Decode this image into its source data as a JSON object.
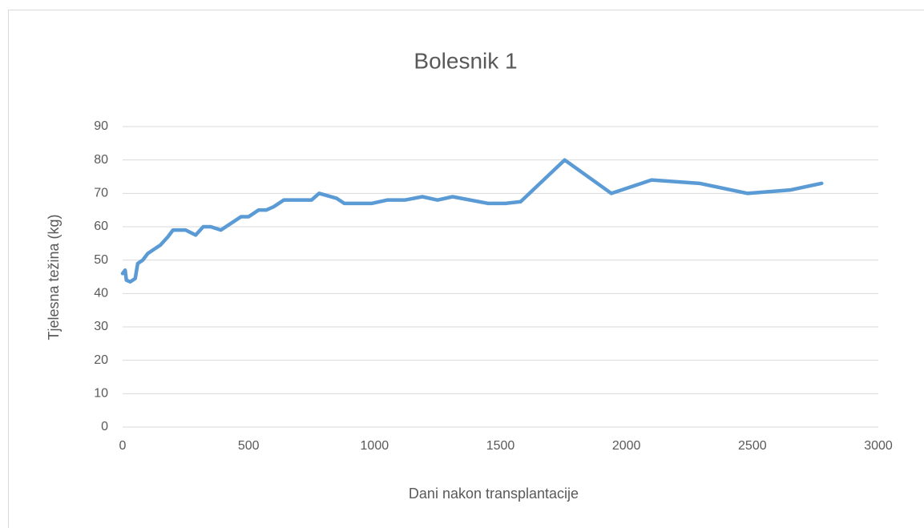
{
  "chart_data": {
    "type": "line",
    "title": "Bolesnik 1",
    "x_label": "Dani nakon transplantacije",
    "y_label": "Tjelesna težina (kg)",
    "x": [
      0,
      10,
      15,
      30,
      50,
      60,
      80,
      100,
      120,
      150,
      180,
      200,
      250,
      290,
      320,
      350,
      390,
      470,
      500,
      540,
      570,
      600,
      640,
      750,
      780,
      850,
      880,
      990,
      1050,
      1120,
      1190,
      1250,
      1310,
      1450,
      1520,
      1580,
      1755,
      1940,
      2100,
      2290,
      2480,
      2650,
      2775
    ],
    "series": [
      {
        "name": "Bolesnik 1",
        "color": "#5b9bd5",
        "values": [
          46,
          47,
          44,
          43.5,
          44.5,
          49,
          50,
          52,
          53,
          54.5,
          57,
          59,
          59,
          57.5,
          60,
          60,
          59,
          63,
          63,
          65,
          65,
          66,
          68,
          68,
          70,
          68.5,
          67,
          67,
          68,
          68,
          69,
          68,
          69,
          67,
          67,
          67.5,
          80,
          70,
          74,
          73,
          70,
          71,
          73
        ]
      }
    ],
    "xlim": [
      0,
      3000
    ],
    "xticks": [
      0,
      500,
      1000,
      1500,
      2000,
      2500,
      3000
    ],
    "ylim": [
      0,
      90
    ],
    "yticks": [
      0,
      10,
      20,
      30,
      40,
      50,
      60,
      70,
      80,
      90
    ],
    "grid": true
  }
}
